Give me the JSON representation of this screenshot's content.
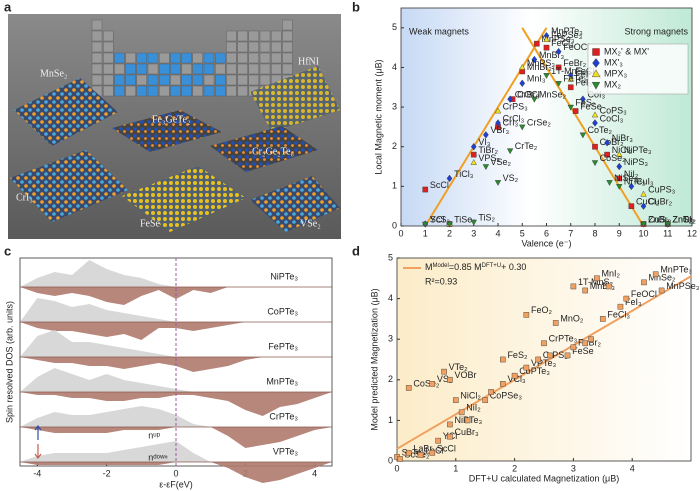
{
  "panel_labels": [
    "a",
    "b",
    "c",
    "d"
  ],
  "illustration": {
    "labels": [
      "MnSe₂",
      "Fe₃GeTe₂",
      "HfNI",
      "Cr₂Ge₂Te₆",
      "CrI₃",
      "FeSe",
      "VSe₂"
    ]
  },
  "chart_data": [
    {
      "type": "scatter",
      "x_label": "Valence (e⁻)",
      "y_label": "Local Magnetic moment (μB)",
      "annotations": [
        "Weak magnets",
        "Strong magnets"
      ],
      "xlim": [
        0,
        12
      ],
      "ylim": [
        0,
        5.5
      ],
      "xticks": [
        0,
        1,
        2,
        3,
        4,
        5,
        6,
        7,
        8,
        9,
        10,
        11,
        12
      ],
      "yticks": [
        0,
        1,
        2,
        3,
        4,
        5
      ],
      "guide_color": "#f0a020",
      "guide_lines": [
        {
          "x": [
            1,
            6
          ],
          "y": [
            0,
            5
          ]
        },
        {
          "x": [
            5,
            10
          ],
          "y": [
            5,
            0
          ]
        }
      ],
      "legend": "upper right",
      "series": [
        {
          "name": "MX₂' & MX'",
          "color": "#e02020",
          "marker": "square",
          "x": [
            1,
            2,
            3,
            4,
            4.6,
            5,
            5.6,
            6,
            6.5,
            7,
            7.2,
            8,
            8.5,
            9,
            9.5,
            10,
            11
          ],
          "values": [
            0.92,
            0.05,
            1.8,
            2.5,
            3.2,
            3.9,
            4.6,
            4.5,
            4.0,
            3.5,
            2.9,
            2.0,
            1.8,
            1.2,
            0.5,
            0.05,
            0.05
          ],
          "labels": [
            "ScCl",
            null,
            "TiBr₂",
            "CrI₃",
            "CrBr₃",
            "MnBr₂",
            "MnPSe₃",
            "FeCl₃",
            "FeBr₂",
            "FeI₃",
            "FeSe",
            "CoBr₂",
            "NiCl₂",
            "NiI₂",
            "CuCl₂",
            "ZnBr₂",
            "ZnCl₂"
          ]
        },
        {
          "name": "MX'₃",
          "color": "#2040d0",
          "marker": "diamond",
          "x": [
            1,
            2,
            3,
            3.5,
            4,
            4.5,
            5,
            5.5,
            6,
            6.5,
            7,
            7.5,
            8,
            8.5,
            9,
            9.5,
            10,
            11
          ],
          "values": [
            0.05,
            1.2,
            2.0,
            2.3,
            2.6,
            3.2,
            3.6,
            4.2,
            4.8,
            4.4,
            3.8,
            3.2,
            2.6,
            2.1,
            1.5,
            1.0,
            0.5,
            0.05
          ],
          "labels": [
            "YCl",
            "TiCl₃",
            "VI₃",
            "VBr₃",
            "CrCl₃",
            "CrOCl",
            "MnI₃",
            "MnBr₃",
            "MnPTe₃",
            "FeOCl",
            "FeCl₃",
            "CoI₃",
            "CoCl₃",
            "NiBr₃",
            "NiPS₃",
            "CuI₃",
            "CuBr₂",
            "ZnTe₂"
          ]
        },
        {
          "name": "MPX₃",
          "color": "#f0e020",
          "marker": "triangle",
          "x": [
            2,
            3,
            4,
            5,
            6,
            7,
            8,
            9,
            10
          ],
          "values": [
            0.05,
            1.6,
            2.9,
            4.0,
            4.7,
            3.7,
            2.8,
            1.8,
            0.8
          ],
          "labels": [
            null,
            "VPS₃",
            "CrPS₃",
            "MnPS₃",
            "FePSe₃",
            "FePS₃",
            "CoPS₃",
            "NiPTe₃",
            "CuPS₃"
          ]
        },
        {
          "name": "MX₂",
          "color": "#2a8a30",
          "marker": "tridown",
          "x": [
            1,
            2,
            3,
            3.5,
            4,
            4.5,
            5,
            5.5,
            6,
            6.5,
            7,
            7.5,
            8,
            8.6,
            9,
            10,
            11
          ],
          "values": [
            0.05,
            0.05,
            0.1,
            1.5,
            1.1,
            1.9,
            2.5,
            3.2,
            3.8,
            3.6,
            3.0,
            2.3,
            1.6,
            1.1,
            1.0,
            0.05,
            0.05
          ],
          "labels": [
            "ScS₂",
            "TiSe₂",
            "TiS₂",
            "VSe₂",
            "VS₂",
            "CrTe₂",
            "CrSe₂",
            "MnSe₂",
            "1T-MnS₂",
            "FeTe₂",
            "FeS₂",
            "CoTe₂",
            "CoSe₂",
            "NiSe₂",
            "NiTe₂",
            "CuS₂",
            "ZnS₂"
          ]
        }
      ]
    },
    {
      "type": "dos",
      "x_label": "ε-εF(eV)",
      "y_label": "Spin resolved DOS (arb. units)",
      "xlim": [
        -4.5,
        4.5
      ],
      "xticks": [
        -4,
        -2,
        0,
        2,
        4
      ],
      "fermi_level": 0,
      "up_color": "#d4d4d4",
      "down_color": "#b07a6e",
      "annotations": [
        "nᵘᵖ",
        "nᵈᵒʷⁿ"
      ],
      "x": [
        -4.5,
        -4,
        -3.5,
        -3,
        -2.5,
        -2,
        -1.5,
        -1,
        -0.5,
        0,
        0.5,
        1,
        1.5,
        2,
        2.5,
        3,
        3.5,
        4,
        4.5
      ],
      "series": [
        {
          "name": "NiPTe₃",
          "up": [
            0,
            0.3,
            0.5,
            0.4,
            0.9,
            0.6,
            0.4,
            0.3,
            0.1,
            0,
            0,
            0,
            0,
            0,
            0,
            0,
            0,
            0,
            0
          ],
          "down": [
            0,
            0.2,
            0.3,
            0.2,
            0.3,
            0.5,
            0.6,
            0.3,
            0.1,
            0.4,
            0.1,
            0.2,
            0,
            0,
            0,
            0,
            0,
            0,
            0
          ]
        },
        {
          "name": "CoPTe₃",
          "up": [
            0,
            0.8,
            0.7,
            0.5,
            0.6,
            0.4,
            0.3,
            0.2,
            0.1,
            0,
            0,
            0,
            0,
            0,
            0,
            0,
            0,
            0,
            0
          ],
          "down": [
            0,
            0.2,
            0.3,
            0.3,
            0.4,
            0.5,
            0.4,
            0.6,
            0.2,
            0.2,
            0.3,
            0.2,
            0.1,
            0,
            0,
            0,
            0,
            0,
            0
          ]
        },
        {
          "name": "FePTe₃",
          "up": [
            0,
            0.7,
            0.9,
            0.5,
            0.5,
            0.4,
            0.3,
            0.2,
            0.1,
            0,
            0,
            0,
            0,
            0,
            0,
            0,
            0,
            0,
            0
          ],
          "down": [
            0,
            0.1,
            0.2,
            0.2,
            0.3,
            0.3,
            0.4,
            0.3,
            0.2,
            0.3,
            0.5,
            0.4,
            0.3,
            0.1,
            0,
            0,
            0,
            0,
            0
          ]
        },
        {
          "name": "MnPTe₃",
          "up": [
            0,
            0.5,
            0.8,
            0.6,
            0.4,
            0.6,
            0.4,
            0.3,
            0.2,
            0.1,
            0,
            0,
            0,
            0,
            0,
            0,
            0,
            0,
            0
          ],
          "down": [
            0,
            0.1,
            0.1,
            0.2,
            0.2,
            0.3,
            0.3,
            0.2,
            0.2,
            0.1,
            0.1,
            0.2,
            0.3,
            0.6,
            0.8,
            0.5,
            0.4,
            0.2,
            0
          ]
        },
        {
          "name": "CrPTe₃",
          "up": [
            0,
            0.3,
            0.5,
            0.4,
            0.4,
            0.5,
            0.6,
            0.7,
            0.6,
            0.4,
            0.1,
            0,
            0,
            0,
            0,
            0,
            0,
            0,
            0
          ],
          "down": [
            0,
            0.1,
            0.2,
            0.2,
            0.2,
            0.2,
            0.1,
            0.1,
            0.1,
            0,
            0,
            0,
            0.3,
            0.7,
            0.6,
            0.5,
            0.3,
            0.1,
            0
          ]
        },
        {
          "name": "VPTe₃",
          "up": [
            0,
            0.2,
            0.3,
            0.3,
            0.3,
            0.3,
            0.4,
            0.5,
            0.6,
            0.7,
            0.3,
            0,
            0,
            0,
            0,
            0,
            0,
            0,
            0
          ],
          "down": [
            0,
            0.1,
            0.1,
            0.1,
            0.1,
            0.1,
            0.1,
            0.1,
            0.1,
            0,
            0,
            0,
            0.2,
            0.5,
            0.7,
            0.6,
            0.4,
            0.2,
            0
          ]
        }
      ]
    },
    {
      "type": "scatter",
      "x_label": "DFT+U calculated Magnetization (μB)",
      "y_label": "Model predicted Magnetization (μB)",
      "xlim": [
        0,
        5
      ],
      "ylim": [
        0,
        5
      ],
      "xticks": [
        0,
        1,
        2,
        3,
        4
      ],
      "yticks": [
        0,
        1,
        2,
        3,
        4,
        5
      ],
      "fit": {
        "slope": 0.85,
        "intercept": 0.3,
        "color": "#f0a060",
        "legend": [
          "M",
          "Model",
          "=0.85 M",
          "DFT+U",
          "+ 0.30"
        ]
      },
      "r2_label": "R²=0.93",
      "series": [
        {
          "color": "#f0a060",
          "marker": "square",
          "x": [
            0,
            0.05,
            0.2,
            0.4,
            0.6,
            0.7,
            0.9,
            0.9,
            1.1,
            1.2,
            1.0,
            0.2,
            0.6,
            0.9,
            0.8,
            1.5,
            1.6,
            1.8,
            2.0,
            2.2,
            2.4,
            2.6,
            2.5,
            2.9,
            3.0,
            3.2,
            3.3,
            2.2,
            3.5,
            3.8,
            3.9,
            3.2,
            3.0,
            3.4,
            3.6,
            4.2,
            4.5,
            4.4,
            2.7,
            1.8
          ],
          "values": [
            0.1,
            0.05,
            0.2,
            0.15,
            0.2,
            0.5,
            0.6,
            0.9,
            1.2,
            1.0,
            1.5,
            1.8,
            1.9,
            2.0,
            2.2,
            1.5,
            1.7,
            1.9,
            2.1,
            2.3,
            2.5,
            2.6,
            2.9,
            2.6,
            2.8,
            2.9,
            3.0,
            3.6,
            3.5,
            3.8,
            4.0,
            4.2,
            4.3,
            4.5,
            4.3,
            4.4,
            4.2,
            4.6,
            3.4,
            2.5
          ],
          "labels": [
            "ScTe₂",
            "ScSe₂",
            "LaBr",
            "LaCl",
            "ScCl",
            "YCl",
            "CuBr₃",
            "NiPTe₃",
            "NiI₂",
            null,
            "NiCl₂",
            "CoSe₂",
            "VS₂",
            "VOBr",
            "VTe₂",
            "CoPSe₃",
            null,
            "VCl₃",
            "CoPTe₃",
            "VPTe₃",
            "CrPS₃",
            null,
            "CrPTe₃",
            "FeSe",
            "FeBr₂",
            null,
            null,
            "FeO₂",
            "FeCl₃",
            "FeI₃",
            "FeOCl",
            "MnBr₃",
            "1T-MnS₂",
            "MnI₂",
            null,
            "MnSe₂",
            "MnPSe₃",
            "MnPTe₃",
            "MnO₂",
            "FeS₂"
          ]
        }
      ]
    }
  ]
}
